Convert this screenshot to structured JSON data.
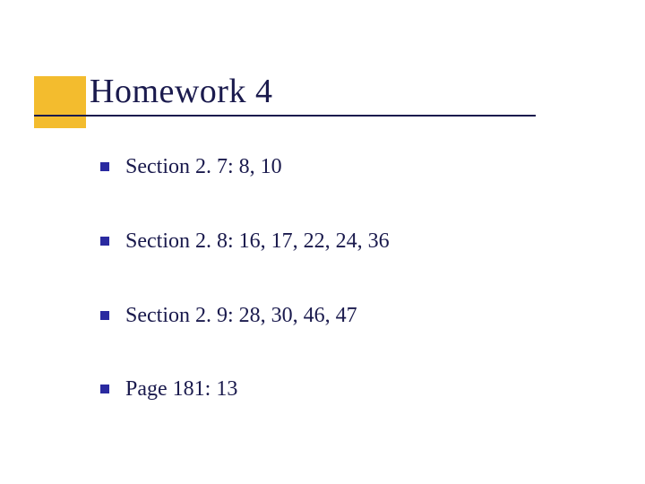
{
  "slide": {
    "accent_color": "#f3bc2e",
    "title_color": "#1a1a4d",
    "bullet_color": "#2a2aa0",
    "text_color": "#1a1a4d",
    "background_color": "#ffffff",
    "title_fontsize": 38,
    "item_fontsize": 24,
    "title": "Homework 4",
    "items": [
      "Section 2. 7: 8, 10",
      "Section 2. 8: 16, 17, 22, 24, 36",
      "Section 2. 9: 28, 30, 46, 47",
      "Page 181: 13"
    ]
  }
}
